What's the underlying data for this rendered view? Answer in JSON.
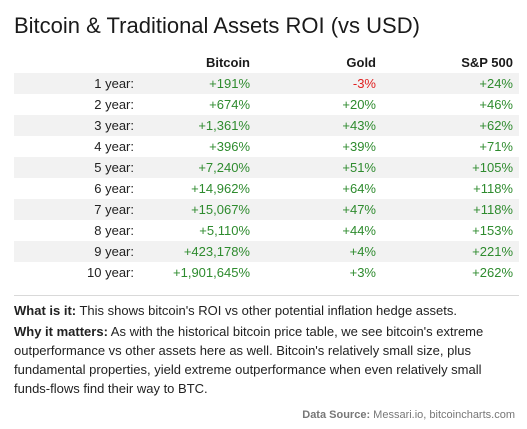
{
  "title": "Bitcoin & Traditional Assets ROI (vs USD)",
  "table": {
    "headers": [
      "",
      "Bitcoin",
      "Gold",
      "S&P 500"
    ],
    "rows": [
      {
        "label": "1 year:",
        "bitcoin": "+191%",
        "gold": "-3%",
        "sp500": "+24%"
      },
      {
        "label": "2 year:",
        "bitcoin": "+674%",
        "gold": "+20%",
        "sp500": "+46%"
      },
      {
        "label": "3 year:",
        "bitcoin": "+1,361%",
        "gold": "+43%",
        "sp500": "+62%"
      },
      {
        "label": "4 year:",
        "bitcoin": "+396%",
        "gold": "+39%",
        "sp500": "+71%"
      },
      {
        "label": "5 year:",
        "bitcoin": "+7,240%",
        "gold": "+51%",
        "sp500": "+105%"
      },
      {
        "label": "6 year:",
        "bitcoin": "+14,962%",
        "gold": "+64%",
        "sp500": "+118%"
      },
      {
        "label": "7 year:",
        "bitcoin": "+15,067%",
        "gold": "+47%",
        "sp500": "+118%"
      },
      {
        "label": "8 year:",
        "bitcoin": "+5,110%",
        "gold": "+44%",
        "sp500": "+153%"
      },
      {
        "label": "9 year:",
        "bitcoin": "+423,178%",
        "gold": "+4%",
        "sp500": "+221%"
      },
      {
        "label": "10 year:",
        "bitcoin": "+1,901,645%",
        "gold": "+3%",
        "sp500": "+262%"
      }
    ]
  },
  "what": {
    "label": "What is it:",
    "text": " This shows bitcoin's ROI vs other potential inflation hedge assets."
  },
  "why": {
    "label": "Why it matters:",
    "text": " As with the historical bitcoin price table, we see bitcoin's extreme outperformance vs other assets here as well. Bitcoin's relatively small size, plus fundamental properties, yield extreme outperformance when even relatively small funds-flows find their way to BTC."
  },
  "source": {
    "label": "Data Source:",
    "text": " Messari.io, bitcoincharts.com"
  },
  "colors": {
    "positive": "#2e8b2e",
    "negative": "#e02020",
    "zebra": "#f2f2f2"
  }
}
